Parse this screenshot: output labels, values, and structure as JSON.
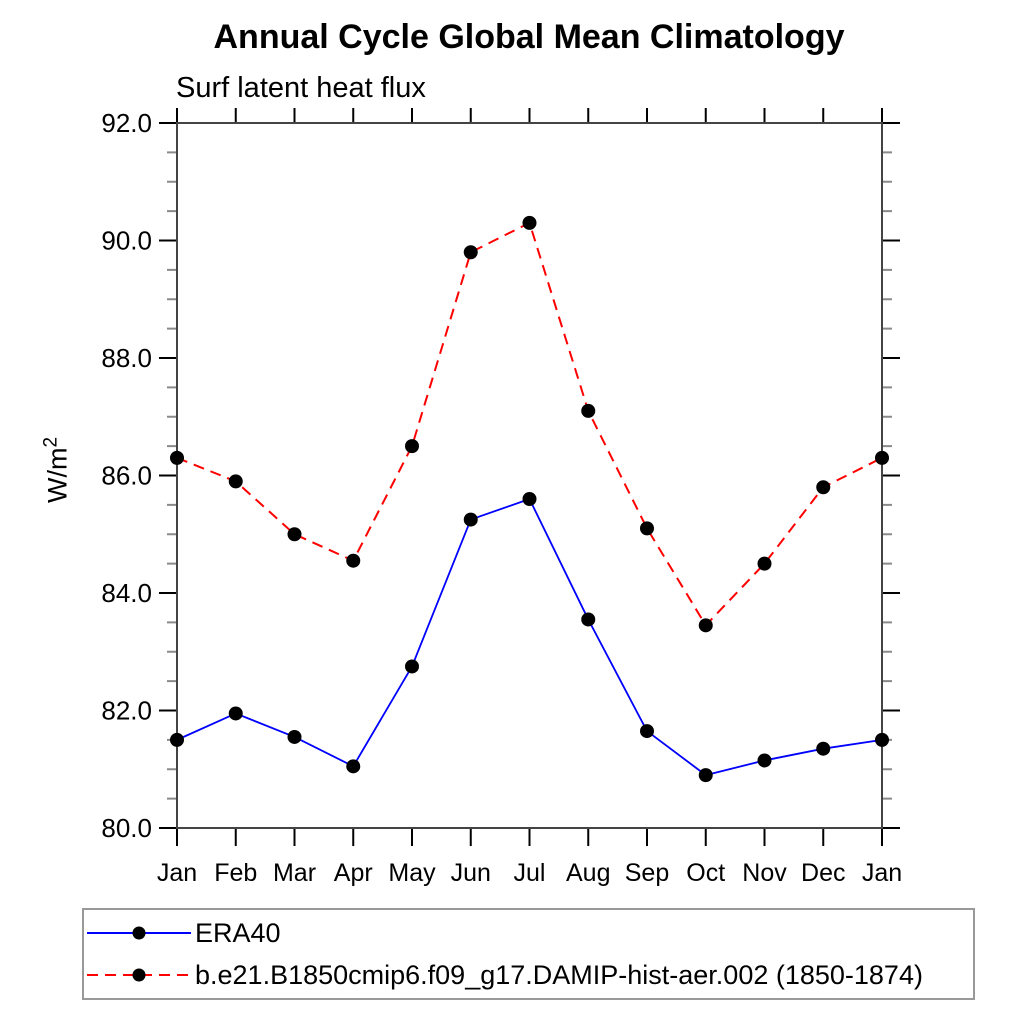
{
  "chart_data": {
    "type": "line",
    "title": "Annual Cycle Global Mean Climatology",
    "subtitle": "Surf latent heat flux",
    "ylabel": "W/m²",
    "ylabel_parts": {
      "base": "W/m",
      "sup": "2"
    },
    "categories": [
      "Jan",
      "Feb",
      "Mar",
      "Apr",
      "May",
      "Jun",
      "Jul",
      "Aug",
      "Sep",
      "Oct",
      "Nov",
      "Dec",
      "Jan"
    ],
    "series": [
      {
        "name": "ERA40",
        "color": "#0000ff",
        "line_style": "solid",
        "marker": "circle",
        "marker_color": "#000000",
        "values": [
          81.5,
          81.95,
          81.55,
          81.05,
          82.75,
          85.25,
          85.6,
          83.55,
          81.65,
          80.9,
          81.15,
          81.35,
          81.5
        ]
      },
      {
        "name": "b.e21.B1850cmip6.f09_g17.DAMIP-hist-aer.002 (1850-1874)",
        "color": "#ff0000",
        "line_style": "dashed",
        "marker": "circle",
        "marker_color": "#000000",
        "values": [
          86.3,
          85.9,
          85.0,
          84.55,
          86.5,
          89.8,
          90.3,
          87.1,
          85.1,
          83.45,
          84.5,
          85.8,
          86.3
        ]
      }
    ],
    "ylim": [
      80.0,
      92.0
    ],
    "y_major_step": 2.0,
    "y_minor_step": 0.5,
    "y_tick_labels": [
      "80.0",
      "82.0",
      "84.0",
      "86.0",
      "88.0",
      "90.0",
      "92.0"
    ],
    "grid": false,
    "legend_position": "bottom-left-box",
    "axis_color": "#444444",
    "major_tick_color": "#000000",
    "minor_tick_color": "#8a8a8a",
    "text_color": "#000000"
  }
}
